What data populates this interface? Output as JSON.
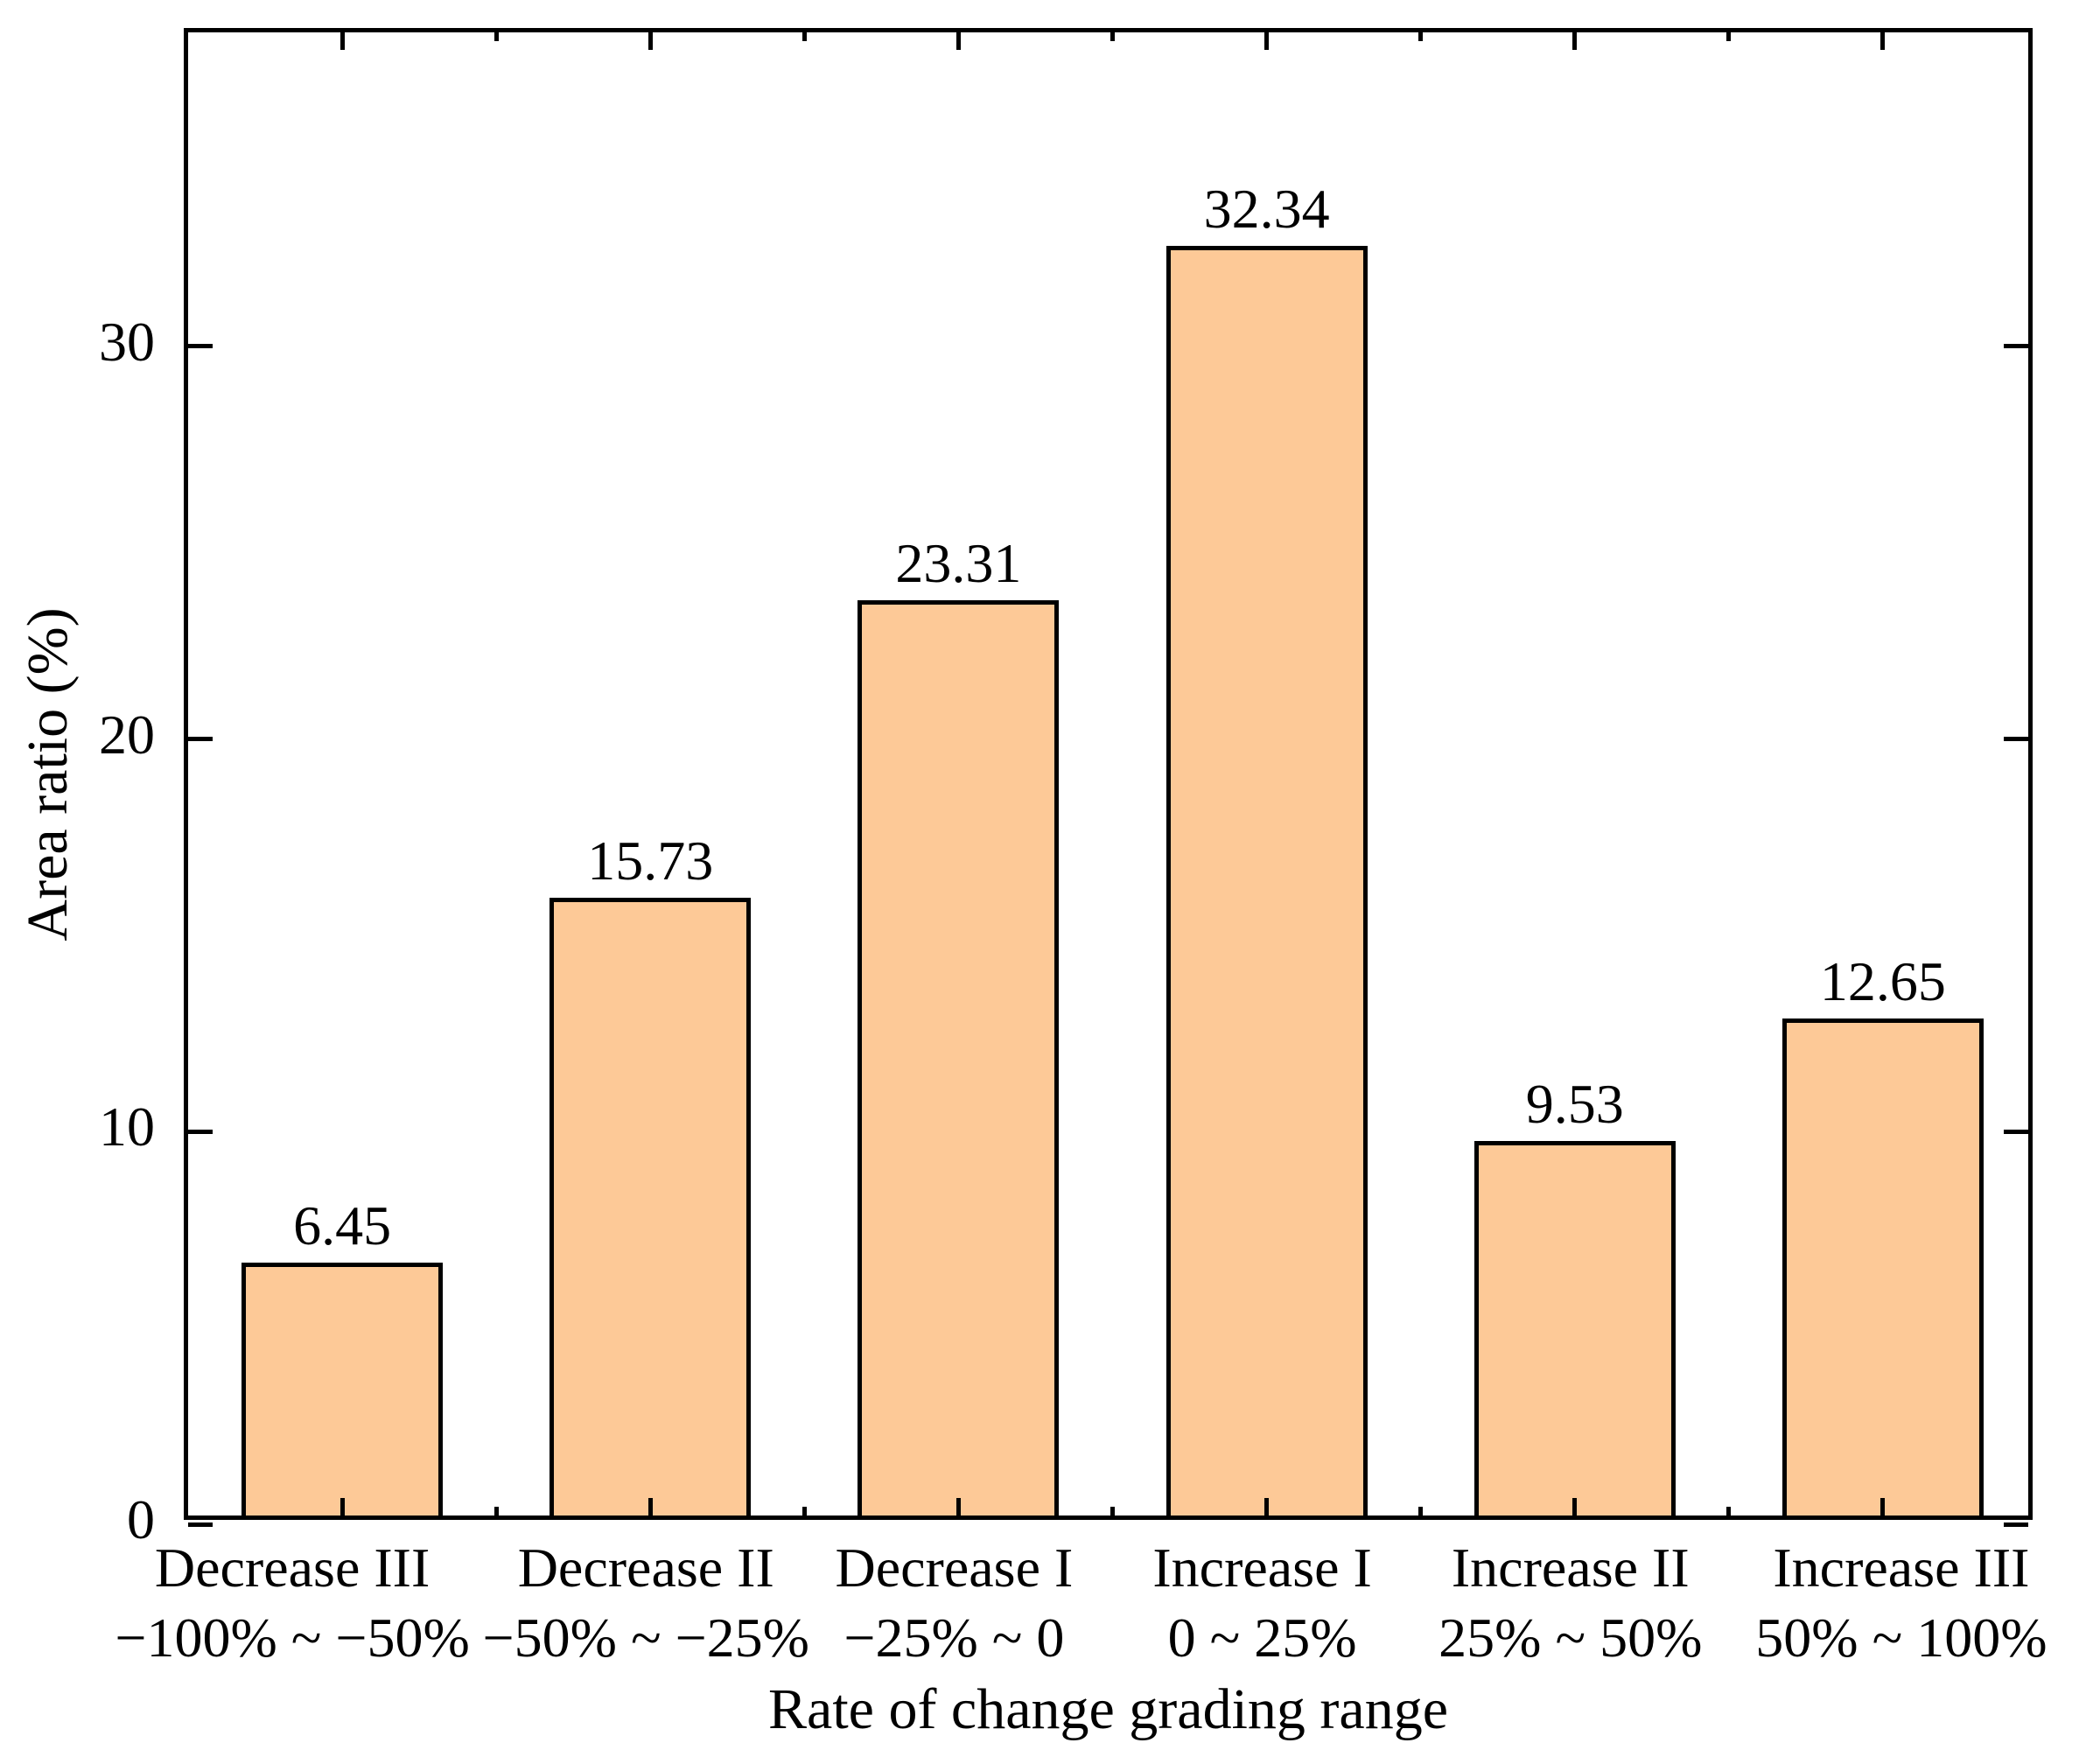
{
  "figure": {
    "background": "#ffffff",
    "text_color": "#000000"
  },
  "chart_data": {
    "type": "bar",
    "title": "",
    "xlabel": "Rate of change grading range",
    "ylabel": "Area ratio (%)",
    "categories": [
      {
        "name": "Decrease III",
        "range": "−100% ~ −50%"
      },
      {
        "name": "Decrease II",
        "range": "−50% ~ −25%"
      },
      {
        "name": "Decrease I",
        "range": "−25% ~ 0"
      },
      {
        "name": "Increase I",
        "range": "0 ~ 25%"
      },
      {
        "name": "Increase II",
        "range": "25% ~ 50%"
      },
      {
        "name": "Increase III",
        "range": "50% ~ 100%"
      }
    ],
    "values": [
      6.45,
      15.73,
      23.31,
      32.34,
      9.53,
      12.65
    ],
    "value_labels": [
      "6.45",
      "15.73",
      "23.31",
      "32.34",
      "9.53",
      "12.65"
    ],
    "yticks": [
      0,
      10,
      20,
      30
    ],
    "ytick_labels": [
      "0",
      "10",
      "20",
      "30"
    ],
    "ylim": [
      0,
      38
    ],
    "grid": false,
    "legend": null,
    "bar_fill": "#FDC997",
    "bar_edge": "#000000",
    "axis_color": "#000000"
  }
}
